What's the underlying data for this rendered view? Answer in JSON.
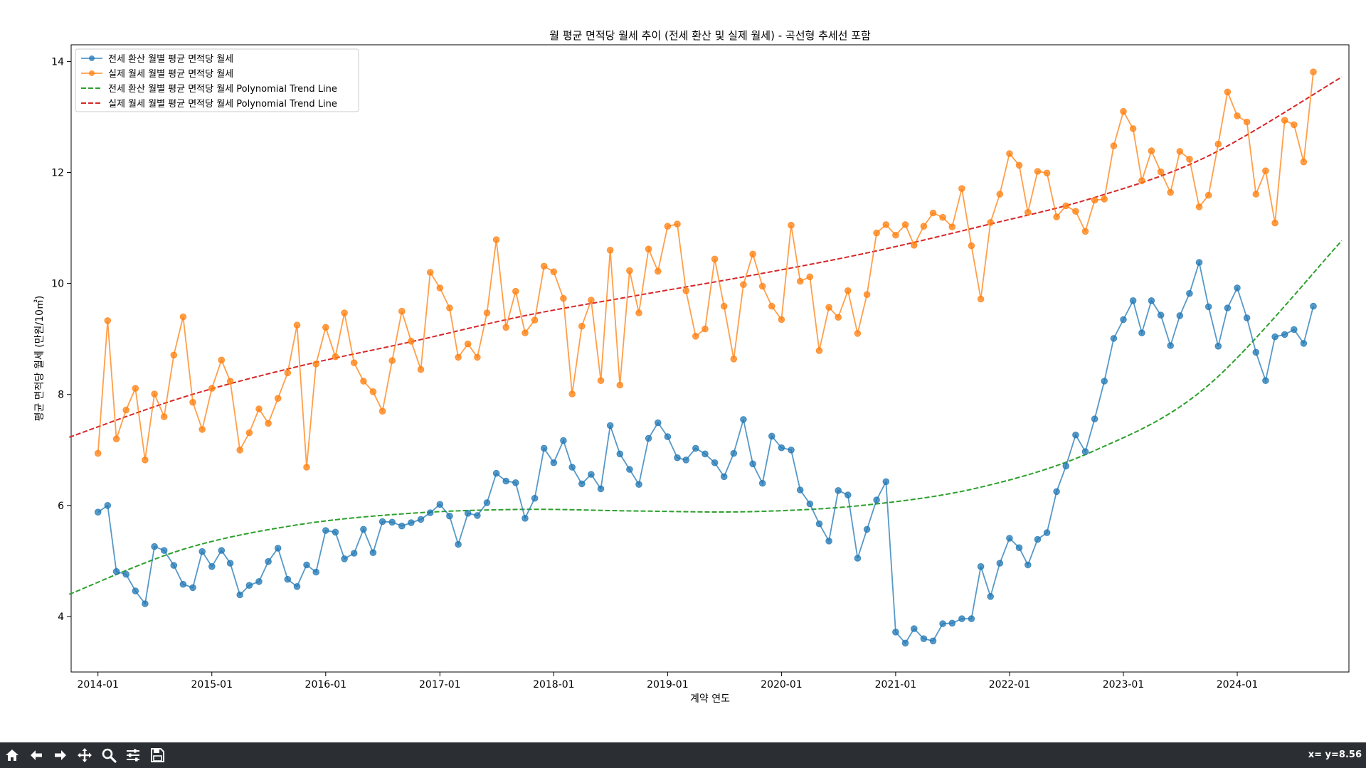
{
  "chart_data": {
    "type": "line",
    "title": "월 평균 면적당 월세 추이 (전세 환산 및 실제 월세) - 곡선형 추세선 포함",
    "xlabel": "계약 연도",
    "ylabel": "평균 면적당 월세 (만원/10㎡)",
    "xlim": [
      "2013-10-07",
      "2024-12-24"
    ],
    "ylim": [
      3.0,
      14.3
    ],
    "x_tick_labels": [
      "2014-01",
      "2015-01",
      "2016-01",
      "2017-01",
      "2018-01",
      "2019-01",
      "2020-01",
      "2021-01",
      "2022-01",
      "2023-01",
      "2024-01"
    ],
    "y_ticks": [
      4,
      6,
      8,
      10,
      12,
      14
    ],
    "grid": false,
    "legend_position": "top-left",
    "legend": [
      {
        "label": "전세 환산 월별 평균 면적당 월세",
        "color": "#1f77b4",
        "style": "line-marker"
      },
      {
        "label": "실제 월세 월별 평균 면적당 월세",
        "color": "#ff7f0e",
        "style": "line-marker"
      },
      {
        "label": "전세 환산 월별 평균 면적당 월세 Polynomial Trend Line",
        "color": "#2ca02c",
        "style": "dashed"
      },
      {
        "label": "실제 월세 월별 평균 면적당 월세 Polynomial Trend Line",
        "color": "#d62728",
        "style": "dashed"
      }
    ],
    "x_start": "2014-01",
    "series": [
      {
        "name": "전세 환산 월별 평균 면적당 월세",
        "color": "#1f77b4",
        "values": [
          5.88,
          6.0,
          4.81,
          4.76,
          4.46,
          4.23,
          5.26,
          5.19,
          4.92,
          4.58,
          4.52,
          5.17,
          4.9,
          5.19,
          4.96,
          4.39,
          4.56,
          4.63,
          4.99,
          5.23,
          4.67,
          4.54,
          4.93,
          4.8,
          5.55,
          5.52,
          5.04,
          5.14,
          5.57,
          5.15,
          5.71,
          5.7,
          5.63,
          5.69,
          5.75,
          5.87,
          6.02,
          5.81,
          5.3,
          5.86,
          5.82,
          6.05,
          6.58,
          6.44,
          6.41,
          5.77,
          6.13,
          7.03,
          6.77,
          7.17,
          6.69,
          6.39,
          6.56,
          6.3,
          7.44,
          6.93,
          6.65,
          6.38,
          7.21,
          7.49,
          7.24,
          6.86,
          6.82,
          7.03,
          6.93,
          6.77,
          6.52,
          6.94,
          7.55,
          6.75,
          6.4,
          7.25,
          7.04,
          7.0,
          6.28,
          6.03,
          5.67,
          5.36,
          6.27,
          6.19,
          5.05,
          5.57,
          6.1,
          6.43,
          3.72,
          3.52,
          3.78,
          3.6,
          3.56,
          3.87,
          3.88,
          3.96,
          3.96,
          4.9,
          4.36,
          4.96,
          5.41,
          5.24,
          4.93,
          5.39,
          5.51,
          6.25,
          6.71,
          7.27,
          6.97,
          7.56,
          8.24,
          9.01,
          9.35,
          9.69,
          9.11,
          9.69,
          9.43,
          8.88,
          9.42,
          9.82,
          10.38,
          9.58,
          8.87,
          9.56,
          9.92,
          9.38,
          8.76,
          8.25,
          9.04,
          9.08,
          9.17,
          8.92,
          9.59
        ]
      },
      {
        "name": "실제 월세 월별 평균 면적당 월세",
        "color": "#ff7f0e",
        "values": [
          6.94,
          9.33,
          7.2,
          7.72,
          8.11,
          6.82,
          8.01,
          7.6,
          8.71,
          9.4,
          7.86,
          7.37,
          8.11,
          8.62,
          8.24,
          7.0,
          7.31,
          7.74,
          7.48,
          7.93,
          8.39,
          9.25,
          6.69,
          8.55,
          9.21,
          8.68,
          9.47,
          8.57,
          8.24,
          8.05,
          7.7,
          8.61,
          9.5,
          8.96,
          8.45,
          10.2,
          9.92,
          9.56,
          8.67,
          8.91,
          8.67,
          9.47,
          10.79,
          9.21,
          9.86,
          9.11,
          9.34,
          10.31,
          10.21,
          9.73,
          8.01,
          9.23,
          9.7,
          8.25,
          10.6,
          8.17,
          10.23,
          9.47,
          10.62,
          10.22,
          11.03,
          11.07,
          9.87,
          9.05,
          9.18,
          10.44,
          9.59,
          8.64,
          9.98,
          10.53,
          9.95,
          9.59,
          9.35,
          11.05,
          10.04,
          10.12,
          8.79,
          9.57,
          9.39,
          9.87,
          9.1,
          9.8,
          10.91,
          11.06,
          10.87,
          11.06,
          10.69,
          11.03,
          11.27,
          11.19,
          11.02,
          11.71,
          10.68,
          9.72,
          11.1,
          11.61,
          12.34,
          12.13,
          11.28,
          12.02,
          11.99,
          11.2,
          11.4,
          11.3,
          10.94,
          11.5,
          11.52,
          12.48,
          13.1,
          12.79,
          11.85,
          12.39,
          12.01,
          11.64,
          12.38,
          12.24,
          11.38,
          11.59,
          12.51,
          13.45,
          13.02,
          12.91,
          11.61,
          12.03,
          11.09,
          12.94,
          12.86,
          12.19,
          13.81
        ]
      }
    ],
    "trend_lines": [
      {
        "name": "전세 환산 월별 평균 면적당 월세 Polynomial Trend Line",
        "color": "#2ca02c",
        "points": [
          [
            "2013-10",
            4.4
          ],
          [
            "2014-10",
            5.21
          ],
          [
            "2015-10",
            5.65
          ],
          [
            "2016-10",
            5.86
          ],
          [
            "2017-10",
            5.93
          ],
          [
            "2018-10",
            5.9
          ],
          [
            "2019-10",
            5.89
          ],
          [
            "2020-10",
            6.01
          ],
          [
            "2021-10",
            6.33
          ],
          [
            "2022-10",
            6.99
          ],
          [
            "2023-10",
            8.17
          ],
          [
            "2024-12",
            10.77
          ]
        ]
      },
      {
        "name": "실제 월세 월별 평균 면적당 월세 Polynomial Trend Line",
        "color": "#d62728",
        "points": [
          [
            "2013-10",
            7.23
          ],
          [
            "2014-10",
            7.95
          ],
          [
            "2015-10",
            8.5
          ],
          [
            "2016-10",
            8.95
          ],
          [
            "2017-10",
            9.42
          ],
          [
            "2018-10",
            9.79
          ],
          [
            "2019-10",
            10.15
          ],
          [
            "2020-10",
            10.55
          ],
          [
            "2021-10",
            11.03
          ],
          [
            "2022-10",
            11.55
          ],
          [
            "2023-10",
            12.3
          ],
          [
            "2024-12",
            13.72
          ]
        ]
      }
    ]
  },
  "toolbar": {
    "buttons": [
      {
        "name": "home-button",
        "icon": "home-icon"
      },
      {
        "name": "back-button",
        "icon": "arrow-left-icon"
      },
      {
        "name": "forward-button",
        "icon": "arrow-right-icon"
      },
      {
        "name": "pan-button",
        "icon": "move-icon"
      },
      {
        "name": "zoom-button",
        "icon": "magnifier-icon"
      },
      {
        "name": "configure-subplots-button",
        "icon": "sliders-icon"
      },
      {
        "name": "save-button",
        "icon": "floppy-icon"
      }
    ],
    "coord_readout": "x= y=8.56"
  }
}
